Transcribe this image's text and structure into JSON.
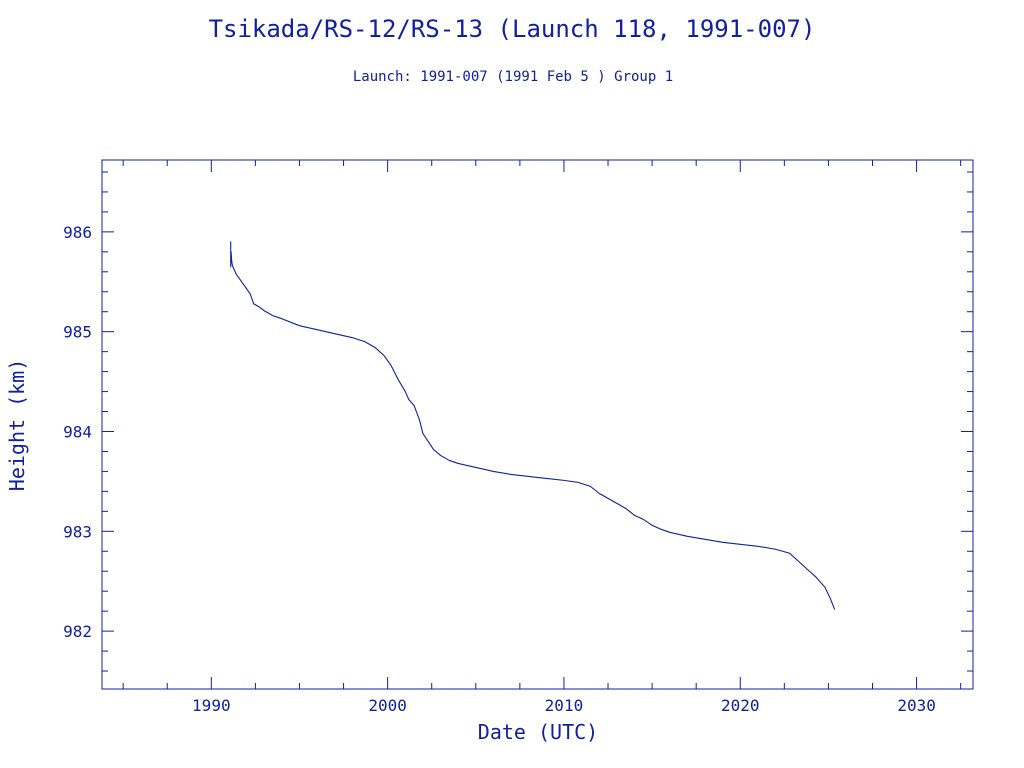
{
  "colors": {
    "axis": "#1020a0",
    "series": "#1020a0",
    "background": "#ffffff"
  },
  "chart_data": {
    "type": "line",
    "title": "Tsikada/RS-12/RS-13 (Launch 118, 1991-007)",
    "subtitle": "Launch: 1991-007  (1991 Feb  5 )  Group 1",
    "xlabel": "Date (UTC)",
    "ylabel": "Height (km)",
    "xlim": [
      1983.8,
      2033.2
    ],
    "ylim": [
      981.42,
      986.72
    ],
    "x_ticks": [
      1990,
      2000,
      2010,
      2020,
      2030
    ],
    "x_tick_labels": [
      "1990",
      "2000",
      "2010",
      "2020",
      "2030"
    ],
    "x_minor_step": 2.5,
    "y_ticks": [
      982,
      983,
      984,
      985,
      986
    ],
    "y_tick_labels": [
      "982",
      "983",
      "984",
      "985",
      "986"
    ],
    "y_minor_step": 0.2,
    "grid": false,
    "series": [
      {
        "x": [
          1991.1,
          1991.1,
          1991.12,
          1991.16,
          1991.2,
          1991.4,
          1991.8,
          1992.2,
          1992.4,
          1992.7,
          1993.0,
          1993.5,
          1994.0,
          1995.0,
          1996.0,
          1997.0,
          1998.0,
          1998.7,
          1999.3,
          1999.8,
          2000.2,
          2000.6,
          2001.0,
          2001.2,
          2001.5,
          2001.8,
          2002.0,
          2002.3,
          2002.6,
          2003.0,
          2003.5,
          2004.0,
          2005.0,
          2006.0,
          2007.0,
          2008.0,
          2009.0,
          2010.0,
          2010.8,
          2011.5,
          2012.0,
          2012.5,
          2013.0,
          2013.5,
          2014.0,
          2014.5,
          2015.0,
          2015.5,
          2016.0,
          2017.0,
          2018.0,
          2019.0,
          2020.0,
          2021.0,
          2022.0,
          2022.8,
          2023.3,
          2023.8,
          2024.3,
          2024.8,
          2025.1,
          2025.35
        ],
        "y": [
          985.9,
          985.65,
          985.8,
          985.7,
          985.66,
          985.58,
          985.48,
          985.38,
          985.28,
          985.25,
          985.21,
          985.16,
          985.13,
          985.06,
          985.02,
          984.98,
          984.94,
          984.9,
          984.84,
          984.76,
          984.66,
          984.52,
          984.4,
          984.32,
          984.26,
          984.12,
          983.98,
          983.9,
          983.82,
          983.76,
          983.71,
          983.68,
          983.64,
          983.6,
          983.57,
          983.55,
          983.53,
          983.51,
          983.49,
          983.45,
          983.38,
          983.33,
          983.28,
          983.23,
          983.16,
          983.12,
          983.06,
          983.02,
          982.99,
          982.95,
          982.92,
          982.89,
          982.87,
          982.85,
          982.82,
          982.78,
          982.7,
          982.62,
          982.54,
          982.44,
          982.33,
          982.22
        ]
      }
    ]
  }
}
